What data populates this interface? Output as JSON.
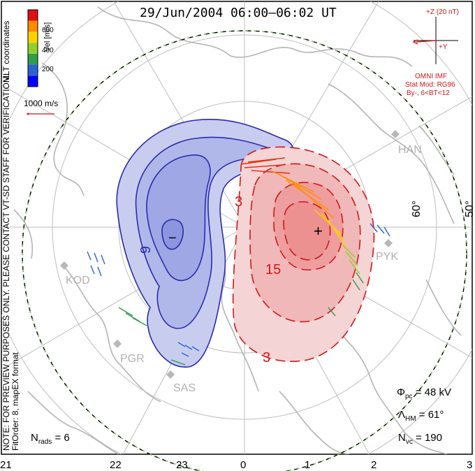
{
  "title": "29/Jun/2004  06:00–06:02  UT",
  "coordinates_label": "MLT coordinates",
  "velocity_scale": {
    "label": "Vel [m/s]",
    "ticks": [
      "600",
      "400",
      "200"
    ],
    "colors": [
      "#0000ff",
      "#2a62d6",
      "#2e9e4a",
      "#8fd12b",
      "#ffd200",
      "#ff8a00",
      "#e01010"
    ]
  },
  "vector_legend": "1000 m/s",
  "preview_note": "NOTE: FOR PREVIEW PURPOSES ONLY.  PLEASE CONTACT VT-SD STAFF FOR VERIFICATION.",
  "fit_note": "FitOrder: 8, mapEX format",
  "imf": {
    "z_label": "+Z (20 nT)",
    "y_label": "+Y",
    "source": "OMNI IMF",
    "model_line1": "Stat Mod: RG96",
    "model_line2": "By-, 6<BT<12"
  },
  "latitude_labels": [
    "60°",
    "50°"
  ],
  "stations": [
    "HAN",
    "PYK",
    "KOD",
    "PGR",
    "SAS"
  ],
  "contour_labels": [
    "3",
    "15",
    "3",
    "9"
  ],
  "extrema": {
    "min": "−",
    "max": "+"
  },
  "stats": {
    "n_rads": "6",
    "phi_pc": "= 48 kV",
    "lambda_hm": "= 61°",
    "n_vc": "= 190"
  },
  "mlt_hours": [
    "21",
    "22",
    "23",
    "0",
    "1",
    "2",
    "3"
  ]
}
